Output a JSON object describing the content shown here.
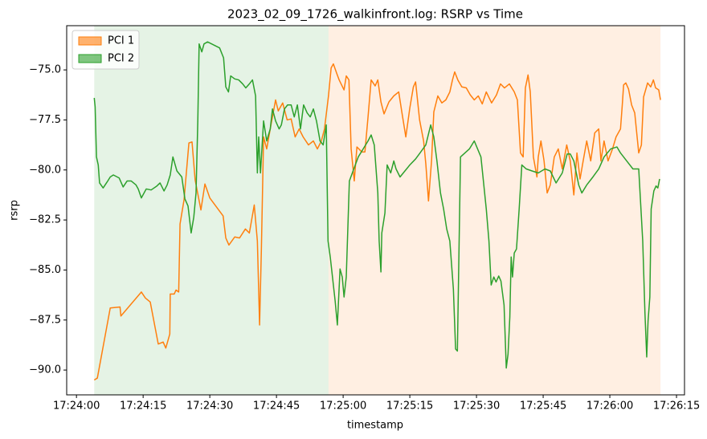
{
  "chart_data": {
    "type": "line",
    "title": "2023_02_09_1726_walkinfront.log: RSRP vs Time",
    "x_label": "timestamp",
    "y_label": "rsrp",
    "xlim": [
      "17:23:57.8",
      "17:26:16.8"
    ],
    "xticks": [
      "17:24:00",
      "17:24:15",
      "17:24:30",
      "17:24:45",
      "17:25:00",
      "17:25:15",
      "17:25:30",
      "17:25:45",
      "17:26:00",
      "17:26:15"
    ],
    "ylim": [
      -91.24,
      -72.79
    ],
    "yticks": [
      {
        "value": -90,
        "label": "−90.0"
      },
      {
        "value": -87.5,
        "label": "−87.5"
      },
      {
        "value": -85,
        "label": "−85.0"
      },
      {
        "value": -82.5,
        "label": "−82.5"
      },
      {
        "value": -80,
        "label": "−80.0"
      },
      {
        "value": -77.5,
        "label": "−77.5"
      },
      {
        "value": -75,
        "label": "−75.0"
      }
    ],
    "grid": false,
    "legend": "upper left",
    "span_alpha": 0.12,
    "spans": [
      {
        "start": "17:24:04.0",
        "end": "17:24:56.7",
        "color": "#2ca02c"
      },
      {
        "start": "17:24:56.7",
        "end": "17:26:11.4",
        "color": "#ff7f0e"
      }
    ],
    "series": [
      {
        "name": "PCI 1",
        "color": "#ff7f0e",
        "x": [
          "17:24:04.0",
          "17:24:04.7",
          "17:24:07.6",
          "17:24:09.8",
          "17:24:10.0",
          "17:24:14.6",
          "17:24:15.5",
          "17:24:16.6",
          "17:24:18.4",
          "17:24:19.5",
          "17:24:20.1",
          "17:24:21.0",
          "17:24:21.1",
          "17:24:22.0",
          "17:24:22.4",
          "17:24:23.0",
          "17:24:23.3",
          "17:24:24.2",
          "17:24:25.3",
          "17:24:26.0",
          "17:24:26.7",
          "17:24:28.0",
          "17:24:28.9",
          "17:24:30.0",
          "17:24:33.0",
          "17:24:33.6",
          "17:24:34.3",
          "17:24:35.6",
          "17:24:36.7",
          "17:24:38.0",
          "17:24:38.9",
          "17:24:40.0",
          "17:24:40.7",
          "17:24:41.2",
          "17:24:41.6",
          "17:24:42.1",
          "17:24:42.8",
          "17:24:43.6",
          "17:24:44.3",
          "17:24:44.8",
          "17:24:45.4",
          "17:24:46.4",
          "17:24:47.4",
          "17:24:48.3",
          "17:24:49.2",
          "17:24:50.1",
          "17:24:51.0",
          "17:24:52.2",
          "17:24:53.3",
          "17:24:54.2",
          "17:24:55.1",
          "17:24:55.8",
          "17:24:56.7",
          "17:24:57.3",
          "17:24:57.8",
          "17:24:58.6",
          "17:24:59.1",
          "17:25:00.2",
          "17:25:00.7",
          "17:25:01.3",
          "17:25:01.8",
          "17:25:02.5",
          "17:25:03.1",
          "17:25:04.2",
          "17:25:04.9",
          "17:25:05.6",
          "17:25:06.3",
          "17:25:07.2",
          "17:25:07.8",
          "17:25:08.5",
          "17:25:09.2",
          "17:25:10.3",
          "17:25:11.4",
          "17:25:12.5",
          "17:25:13.2",
          "17:25:14.1",
          "17:25:15.0",
          "17:25:15.8",
          "17:25:16.3",
          "17:25:17.2",
          "17:25:18.1",
          "17:25:18.6",
          "17:25:19.2",
          "17:25:19.9",
          "17:25:20.4",
          "17:25:21.3",
          "17:25:22.2",
          "17:25:23.1",
          "17:25:24.0",
          "17:25:24.6",
          "17:25:25.1",
          "17:25:25.8",
          "17:25:26.7",
          "17:25:27.7",
          "17:25:28.6",
          "17:25:29.5",
          "17:25:30.4",
          "17:25:31.3",
          "17:25:32.2",
          "17:25:33.4",
          "17:25:34.5",
          "17:25:35.4",
          "17:25:36.3",
          "17:25:37.4",
          "17:25:38.5",
          "17:25:39.2",
          "17:25:39.9",
          "17:25:40.5",
          "17:25:41.0",
          "17:25:41.6",
          "17:25:42.1",
          "17:25:42.8",
          "17:25:43.6",
          "17:25:43.9",
          "17:25:44.5",
          "17:25:45.2",
          "17:25:45.9",
          "17:25:46.6",
          "17:25:47.5",
          "17:25:48.4",
          "17:25:49.3",
          "17:25:50.3",
          "17:25:51.1",
          "17:25:51.9",
          "17:25:52.6",
          "17:25:53.3",
          "17:25:54.0",
          "17:25:54.8",
          "17:25:55.7",
          "17:25:56.6",
          "17:25:57.5",
          "17:25:58.0",
          "17:25:58.7",
          "17:25:59.6",
          "17:26:00.6",
          "17:26:01.4",
          "17:26:02.4",
          "17:26:02.8",
          "17:26:03.1",
          "17:26:03.6",
          "17:26:04.2",
          "17:26:04.9",
          "17:26:05.6",
          "17:26:06.5",
          "17:26:07.1",
          "17:26:07.6",
          "17:26:08.5",
          "17:26:09.2",
          "17:26:09.8",
          "17:26:10.3",
          "17:26:11.0",
          "17:26:11.4"
        ],
        "values": [
          -90.5,
          -90.4,
          -86.9,
          -86.85,
          -87.3,
          -86.1,
          -86.4,
          -86.6,
          -88.7,
          -88.6,
          -88.9,
          -88.2,
          -86.2,
          -86.2,
          -86.0,
          -86.1,
          -82.7,
          -81.5,
          -78.65,
          -78.6,
          -80.5,
          -82.0,
          -80.7,
          -81.4,
          -82.3,
          -83.4,
          -83.75,
          -83.35,
          -83.4,
          -82.95,
          -83.15,
          -81.75,
          -83.55,
          -87.75,
          -84.0,
          -78.35,
          -78.95,
          -77.95,
          -77.1,
          -76.5,
          -77.05,
          -76.65,
          -77.5,
          -77.45,
          -78.35,
          -77.95,
          -78.35,
          -78.75,
          -78.55,
          -78.95,
          -78.55,
          -77.95,
          -76.3,
          -74.9,
          -74.7,
          -75.2,
          -75.5,
          -76.0,
          -75.3,
          -75.5,
          -78.95,
          -80.55,
          -78.85,
          -79.1,
          -79.1,
          -77.35,
          -75.5,
          -75.8,
          -75.5,
          -76.6,
          -77.2,
          -76.6,
          -76.3,
          -76.1,
          -77.1,
          -78.35,
          -76.9,
          -75.85,
          -75.6,
          -77.5,
          -78.55,
          -79.7,
          -81.55,
          -79.5,
          -77.1,
          -76.3,
          -76.65,
          -76.5,
          -76.1,
          -75.5,
          -75.1,
          -75.5,
          -75.85,
          -75.9,
          -76.25,
          -76.5,
          -76.3,
          -76.7,
          -76.1,
          -76.65,
          -76.25,
          -75.7,
          -75.9,
          -75.7,
          -76.1,
          -76.5,
          -79.15,
          -79.35,
          -75.9,
          -75.25,
          -76.1,
          -79.35,
          -80.35,
          -79.35,
          -78.55,
          -79.55,
          -81.15,
          -80.75,
          -79.35,
          -78.95,
          -79.95,
          -78.75,
          -79.55,
          -81.25,
          -79.15,
          -80.45,
          -79.55,
          -78.55,
          -79.55,
          -78.15,
          -77.95,
          -79.55,
          -78.55,
          -79.55,
          -78.95,
          -78.35,
          -77.95,
          -76.75,
          -75.75,
          -75.65,
          -75.95,
          -76.75,
          -77.15,
          -79.15,
          -78.75,
          -76.35,
          -75.65,
          -75.85,
          -75.5,
          -75.9,
          -76.0,
          -76.5
        ]
      },
      {
        "name": "PCI 2",
        "color": "#2ca02c",
        "x": [
          "17:24:04.0",
          "17:24:04.2",
          "17:24:04.5",
          "17:24:04.9",
          "17:24:05.2",
          "17:24:06.0",
          "17:24:06.9",
          "17:24:07.6",
          "17:24:08.3",
          "17:24:09.6",
          "17:24:10.5",
          "17:24:11.4",
          "17:24:12.3",
          "17:24:13.4",
          "17:24:13.9",
          "17:24:14.6",
          "17:24:15.7",
          "17:24:16.8",
          "17:24:18.1",
          "17:24:18.8",
          "17:24:19.7",
          "17:24:20.4",
          "17:24:21.1",
          "17:24:21.7",
          "17:24:22.6",
          "17:24:23.7",
          "17:24:24.4",
          "17:24:25.1",
          "17:24:25.8",
          "17:24:26.4",
          "17:24:26.9",
          "17:24:27.3",
          "17:24:27.6",
          "17:24:28.2",
          "17:24:28.7",
          "17:24:29.5",
          "17:24:30.4",
          "17:24:31.3",
          "17:24:32.2",
          "17:24:33.1",
          "17:24:33.6",
          "17:24:34.2",
          "17:24:34.7",
          "17:24:35.6",
          "17:24:36.5",
          "17:24:37.4",
          "17:24:38.1",
          "17:24:38.9",
          "17:24:39.6",
          "17:24:40.3",
          "17:24:40.7",
          "17:24:41.0",
          "17:24:41.4",
          "17:24:42.1",
          "17:24:42.8",
          "17:24:43.6",
          "17:24:44.1",
          "17:24:44.8",
          "17:24:45.6",
          "17:24:46.1",
          "17:24:46.8",
          "17:24:47.5",
          "17:24:48.3",
          "17:24:49.0",
          "17:24:49.7",
          "17:24:50.4",
          "17:24:51.1",
          "17:24:51.9",
          "17:24:52.6",
          "17:24:53.3",
          "17:24:54.0",
          "17:24:54.8",
          "17:24:55.5",
          "17:24:56.2",
          "17:24:56.6",
          "17:24:57.1",
          "17:24:57.7",
          "17:24:58.2",
          "17:24:58.7",
          "17:24:59.3",
          "17:24:59.8",
          "17:25:00.2",
          "17:25:00.7",
          "17:25:01.4",
          "17:25:02.4",
          "17:25:03.4",
          "17:25:04.5",
          "17:25:05.6",
          "17:25:06.3",
          "17:25:07.0",
          "17:25:07.8",
          "17:25:08.1",
          "17:25:08.5",
          "17:25:08.7",
          "17:25:09.4",
          "17:25:09.9",
          "17:25:10.7",
          "17:25:11.4",
          "17:25:11.9",
          "17:25:12.8",
          "17:25:13.9",
          "17:25:15.0",
          "17:25:16.3",
          "17:25:17.3",
          "17:25:18.6",
          "17:25:19.7",
          "17:25:20.4",
          "17:25:21.1",
          "17:25:21.9",
          "17:25:22.6",
          "17:25:23.3",
          "17:25:24.0",
          "17:25:24.8",
          "17:25:25.3",
          "17:25:25.7",
          "17:25:26.4",
          "17:25:28.4",
          "17:25:29.5",
          "17:25:31.0",
          "17:25:32.2",
          "17:25:32.8",
          "17:25:33.3",
          "17:25:33.9",
          "17:25:34.4",
          "17:25:35.0",
          "17:25:35.5",
          "17:25:36.2",
          "17:25:36.7",
          "17:25:37.1",
          "17:25:37.5",
          "17:25:37.8",
          "17:25:38.1",
          "17:25:38.5",
          "17:25:39.0",
          "17:25:39.6",
          "17:25:40.2",
          "17:25:41.2",
          "17:25:42.5",
          "17:25:43.9",
          "17:25:45.4",
          "17:25:46.6",
          "17:25:47.9",
          "17:25:49.3",
          "17:25:50.4",
          "17:25:51.1",
          "17:25:51.9",
          "17:25:53.0",
          "17:25:53.7",
          "17:25:54.8",
          "17:25:56.2",
          "17:25:57.5",
          "17:25:58.7",
          "17:26:00.2",
          "17:26:01.6",
          "17:26:02.4",
          "17:26:03.8",
          "17:26:05.2",
          "17:26:06.5",
          "17:26:07.4",
          "17:26:07.9",
          "17:26:08.3",
          "17:26:08.6",
          "17:26:09.0",
          "17:26:09.3",
          "17:26:09.9",
          "17:26:10.4",
          "17:26:10.8",
          "17:26:11.2"
        ],
        "values": [
          -76.4,
          -76.85,
          -79.35,
          -79.75,
          -80.65,
          -80.9,
          -80.6,
          -80.35,
          -80.25,
          -80.4,
          -80.85,
          -80.55,
          -80.55,
          -80.75,
          -80.95,
          -81.4,
          -80.95,
          -81.0,
          -80.8,
          -80.65,
          -81.05,
          -80.75,
          -80.25,
          -79.35,
          -80.05,
          -80.35,
          -81.45,
          -81.8,
          -83.15,
          -82.35,
          -81.15,
          -77.55,
          -73.7,
          -74.1,
          -73.7,
          -73.6,
          -73.7,
          -73.8,
          -73.9,
          -74.4,
          -75.85,
          -76.1,
          -75.3,
          -75.45,
          -75.5,
          -75.7,
          -75.9,
          -75.7,
          -75.5,
          -76.3,
          -80.15,
          -78.35,
          -80.15,
          -77.55,
          -78.55,
          -77.95,
          -76.95,
          -77.55,
          -77.95,
          -77.75,
          -76.95,
          -76.75,
          -76.75,
          -77.35,
          -76.75,
          -77.95,
          -76.75,
          -77.15,
          -77.35,
          -76.95,
          -77.55,
          -78.55,
          -78.75,
          -77.75,
          -83.55,
          -84.35,
          -85.55,
          -86.55,
          -87.75,
          -84.95,
          -85.35,
          -86.35,
          -85.35,
          -80.55,
          -79.95,
          -79.35,
          -78.95,
          -78.55,
          -78.25,
          -78.75,
          -81.15,
          -83.55,
          -85.1,
          -83.15,
          -82.15,
          -79.75,
          -80.15,
          -79.55,
          -79.95,
          -80.35,
          -80.05,
          -79.75,
          -79.45,
          -79.15,
          -78.75,
          -77.75,
          -78.35,
          -79.55,
          -81.15,
          -81.95,
          -82.95,
          -83.55,
          -85.95,
          -88.95,
          -89.05,
          -79.35,
          -78.95,
          -78.55,
          -79.35,
          -81.95,
          -83.55,
          -85.75,
          -85.35,
          -85.6,
          -85.3,
          -85.55,
          -86.75,
          -89.9,
          -89.2,
          -87.35,
          -84.35,
          -85.35,
          -84.15,
          -83.95,
          -81.95,
          -79.75,
          -79.95,
          -80.05,
          -80.15,
          -79.95,
          -80.05,
          -80.65,
          -80.15,
          -79.2,
          -79.2,
          -79.55,
          -80.75,
          -81.15,
          -80.75,
          -80.35,
          -79.95,
          -79.35,
          -78.95,
          -78.85,
          -79.15,
          -79.55,
          -79.95,
          -79.95,
          -83.55,
          -87.15,
          -89.35,
          -87.55,
          -86.35,
          -81.95,
          -81.05,
          -80.8,
          -80.9,
          -80.45
        ]
      }
    ]
  }
}
